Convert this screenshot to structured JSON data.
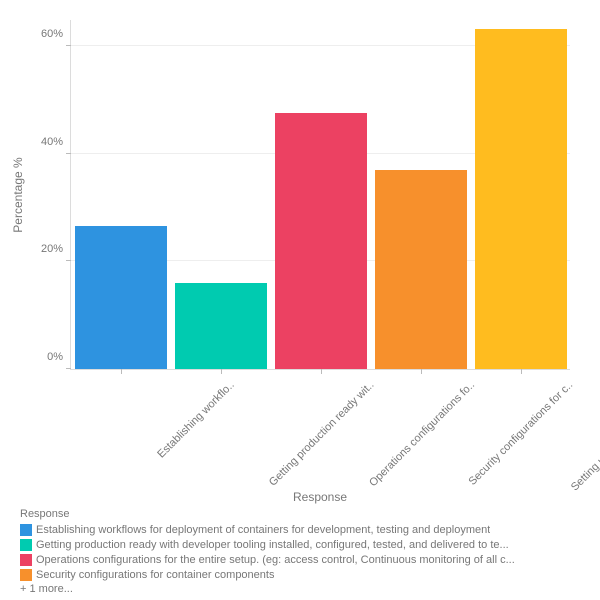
{
  "chart": {
    "type": "bar",
    "background_color": "#ffffff",
    "grid_color": "#eeeeee",
    "axis_color": "#dcdcdc",
    "y_label": "Percentage %",
    "x_label": "Response",
    "label_fontsize": 12,
    "tick_fontsize": 11,
    "text_color": "#777777",
    "ylim_min": 0,
    "ylim_max": 65,
    "yticks": [
      {
        "value": 0,
        "label": "0%"
      },
      {
        "value": 20,
        "label": "20%"
      },
      {
        "value": 40,
        "label": "40%"
      },
      {
        "value": 60,
        "label": "60%"
      }
    ],
    "bar_width_ratio": 0.92,
    "bars": [
      {
        "label_short": "Establishing workflo..",
        "value": 26.5,
        "color": "#2e93e0"
      },
      {
        "label_short": "Getting production ready wit..",
        "value": 16.0,
        "color": "#00cbb0"
      },
      {
        "label_short": "Operations configurations fo..",
        "value": 47.5,
        "color": "#ec4162"
      },
      {
        "label_short": "Security configurations for c..",
        "value": 37.0,
        "color": "#f7902c"
      },
      {
        "label_short": "Setting up the infrastructures ..",
        "value": 63.2,
        "color": "#ffbc1f"
      }
    ],
    "legend": {
      "title": "Response",
      "items": [
        {
          "color": "#2e93e0",
          "label": "Establishing workflows for deployment of containers for development, testing and deployment"
        },
        {
          "color": "#00cbb0",
          "label": "Getting production ready with developer tooling installed, configured, tested, and delivered to te..."
        },
        {
          "color": "#ec4162",
          "label": "Operations configurations for the entire setup. (eg: access control, Continuous monitoring of all c..."
        },
        {
          "color": "#f7902c",
          "label": "Security configurations for container components"
        }
      ],
      "more_text": "+ 1 more..."
    }
  }
}
